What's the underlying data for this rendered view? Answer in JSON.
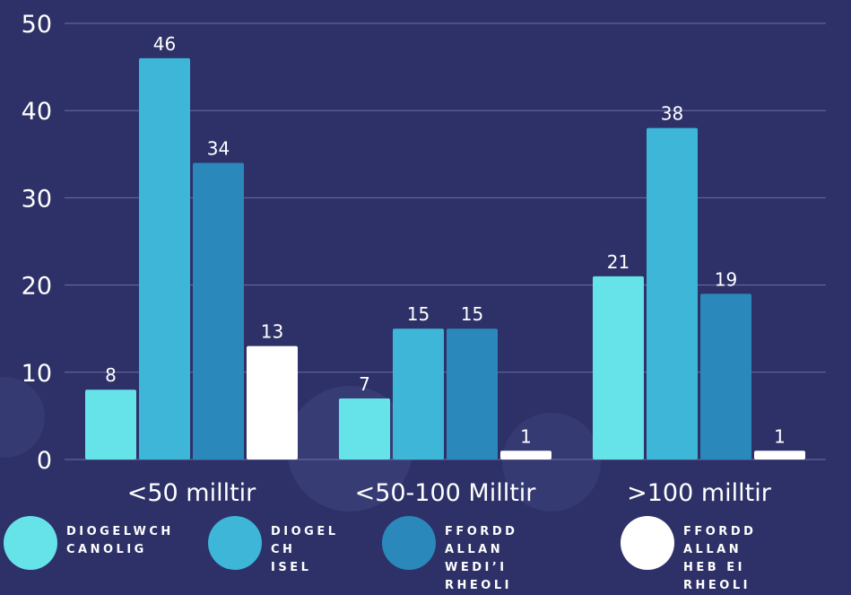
{
  "chart_data": {
    "type": "bar",
    "categories": [
      "<50 milltir",
      "<50-100 Milltir",
      ">100 milltir"
    ],
    "series": [
      {
        "name": "DIOGELWCH CANOLIG",
        "values": [
          8,
          7,
          21
        ],
        "color": "#66e3e8"
      },
      {
        "name": "DIOGEL CH ISEL",
        "values": [
          46,
          15,
          38
        ],
        "color": "#3db6d8"
      },
      {
        "name": "FFORDD ALLAN WEDI'I RHEOLI",
        "values": [
          34,
          15,
          19
        ],
        "color": "#2b88bb"
      },
      {
        "name": "FFORDD ALLAN HEB EI RHEOLI",
        "values": [
          13,
          1,
          1
        ],
        "color": "#ffffff"
      }
    ],
    "y_ticks": [
      "0",
      "10",
      "20",
      "30",
      "40",
      "50"
    ],
    "ylim": [
      0,
      50
    ],
    "grid": true,
    "legend_position": "bottom",
    "data_labels": [
      [
        "8",
        "46",
        "34",
        "13"
      ],
      [
        "7",
        "15",
        "15",
        "1"
      ],
      [
        "21",
        "38",
        "19",
        "1"
      ]
    ],
    "title": "",
    "xlabel": "",
    "ylabel": ""
  },
  "legend": [
    {
      "line1": "DIOGELWCH",
      "line2": "CANOLIG",
      "color": "#66e3e8"
    },
    {
      "line1": "DIOGEL",
      "line2": "CH ISEL",
      "color": "#3db6d8"
    },
    {
      "line1": "FFORDD ALLAN",
      "line2": "WEDI’I RHEOLI",
      "color": "#2b88bb"
    },
    {
      "line1": "FFORDD ALLAN",
      "line2": "HEB EI RHEOLI",
      "color": "#ffffff"
    }
  ],
  "colors": {
    "background": "#2e3168",
    "grid": "#6a6fa6",
    "axis_text": "#ffffff"
  }
}
